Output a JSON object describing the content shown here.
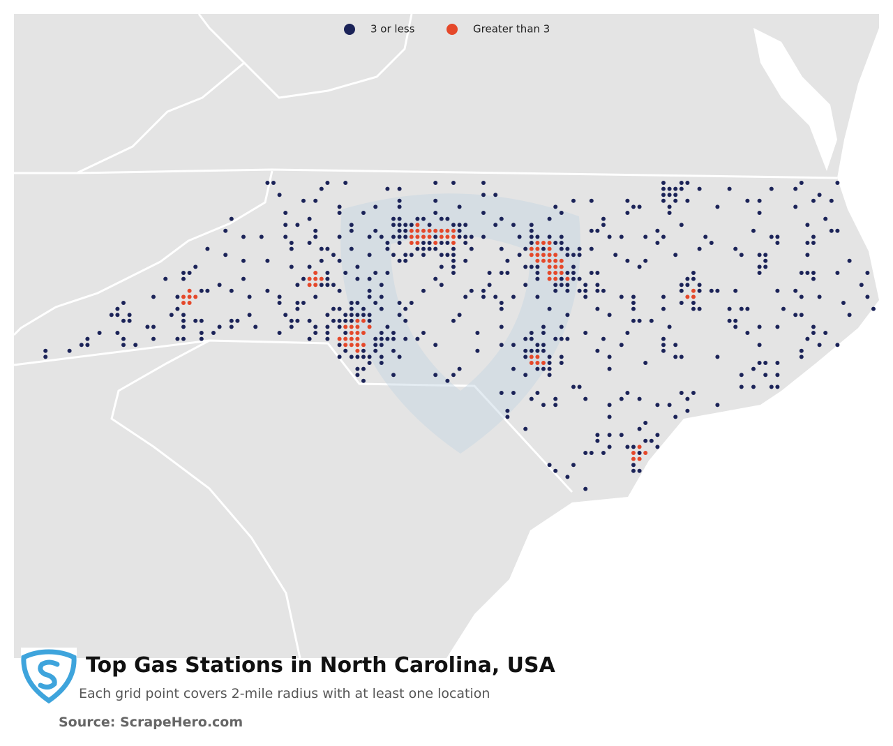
{
  "legend": {
    "items": [
      {
        "label": "3 or less",
        "color": "#1b2358"
      },
      {
        "label": "Greater than 3",
        "color": "#e5482a"
      }
    ]
  },
  "title": "Top Gas Stations in North Carolina, USA",
  "subtitle": "Each grid point covers 2-mile radius with at least one location",
  "source": "Source: ScrapeHero.com"
}
